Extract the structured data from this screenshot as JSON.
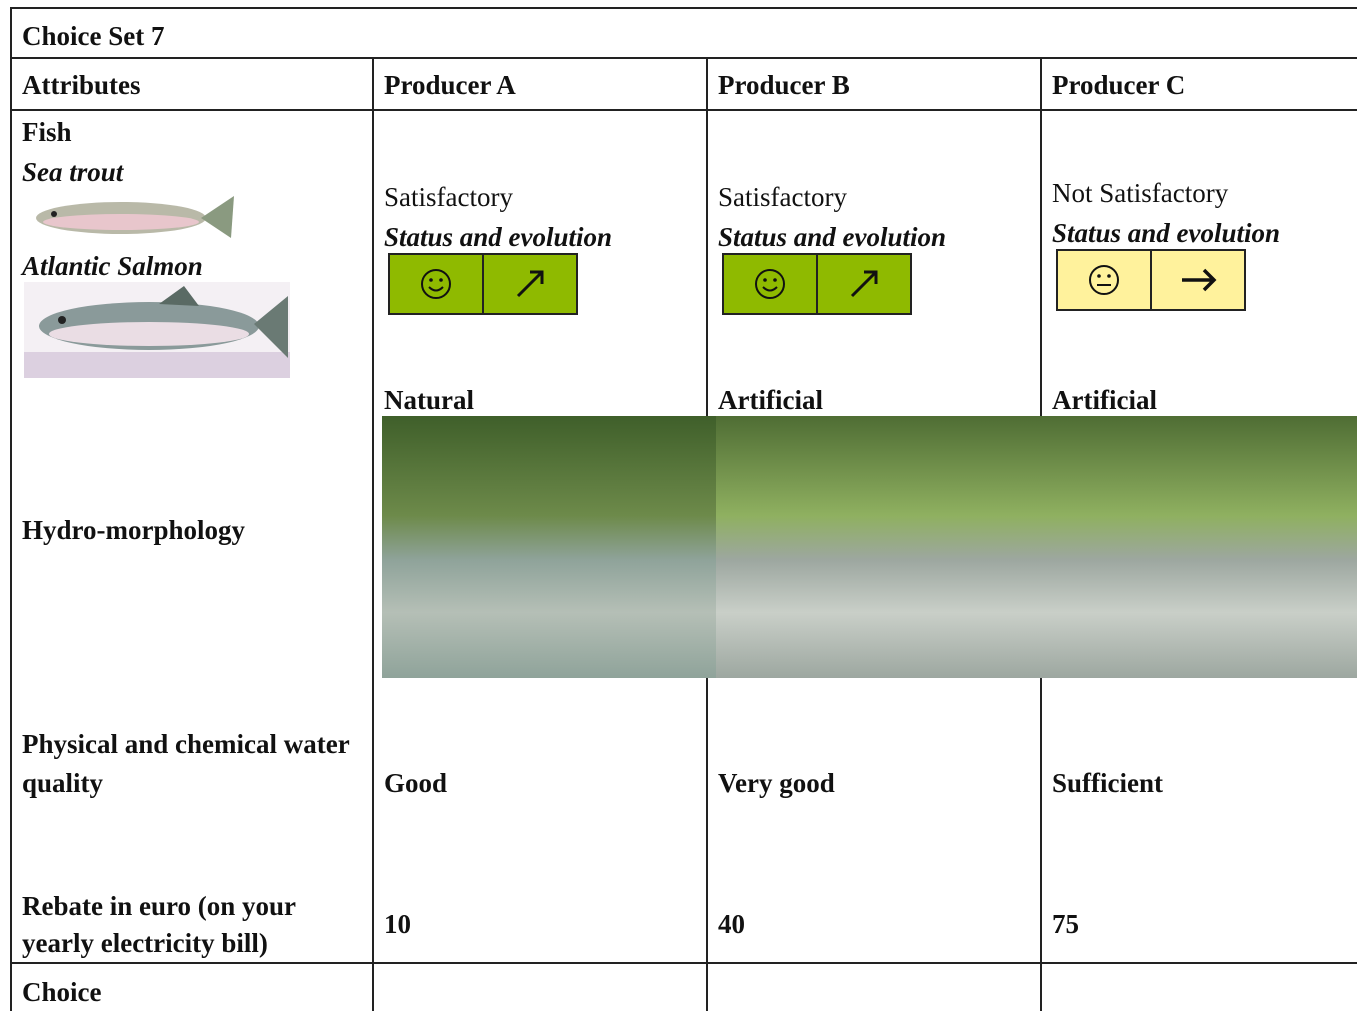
{
  "title": "Choice Set 7",
  "header": [
    "Attributes",
    "Producer A",
    "Producer B",
    "Producer C"
  ],
  "attributes": {
    "fish": "Fish",
    "sea_trout": "Sea trout",
    "atlantic_salmon": "Atlantic Salmon",
    "hydro": "Hydro-morphology",
    "water_quality": "Physical and chemical water quality",
    "rebate": "Rebate in euro (on your yearly electricity bill)",
    "choice": "Choice"
  },
  "producers": [
    {
      "fish_status": "Satisfactory",
      "fish_label": "Status and evolution",
      "hydro": "Natural",
      "water_quality": "Good",
      "rebate": 10
    },
    {
      "fish_status": "Satisfactory",
      "fish_label": "Status and evolution",
      "hydro": "Artificial",
      "water_quality": "Very good",
      "rebate": 40
    },
    {
      "fish_status": "Not Satisfactory",
      "fish_label": "Status and evolution",
      "hydro": "Artificial",
      "water_quality": "Sufficient",
      "rebate": 75
    }
  ]
}
